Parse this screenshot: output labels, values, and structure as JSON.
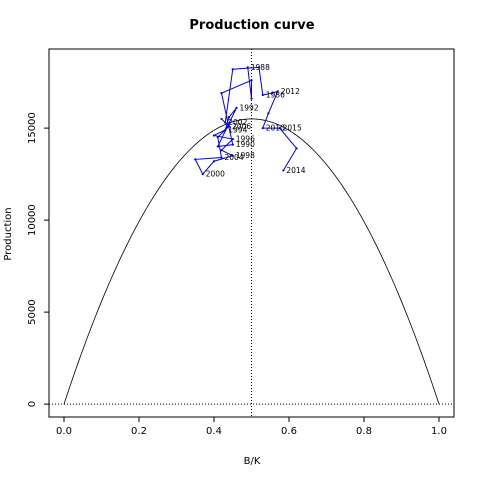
{
  "chart_data": {
    "type": "line",
    "title": "Production curve",
    "xlabel": "B/K",
    "ylabel": "Production",
    "xlim": [
      -0.04,
      1.04
    ],
    "ylim": [
      -700,
      19300
    ],
    "x_ticks": [
      0.0,
      0.2,
      0.4,
      0.6,
      0.8,
      1.0
    ],
    "x_tick_labels": [
      "0.0",
      "0.2",
      "0.4",
      "0.6",
      "0.8",
      "1.0"
    ],
    "y_ticks": [
      0,
      5000,
      10000,
      15000
    ],
    "y_tick_labels": [
      "0",
      "5000",
      "10000",
      "15000"
    ],
    "curve": {
      "description": "parabola P = 4 * MSY * x * (1 - x)",
      "msy": 15500,
      "color": "#000000"
    },
    "reference_lines": {
      "vertical_x": 0.5,
      "horizontal_y": 0,
      "style": "dotted"
    },
    "series": [
      {
        "color": "#0000ee",
        "points": [
          {
            "x": 0.49,
            "y": 18300,
            "label": "1988"
          },
          {
            "x": 0.5,
            "y": 16600,
            "label": ""
          },
          {
            "x": 0.5,
            "y": 17600,
            "label": ""
          },
          {
            "x": 0.42,
            "y": 16900,
            "label": ""
          },
          {
            "x": 0.45,
            "y": 14100,
            "label": "1990"
          },
          {
            "x": 0.41,
            "y": 14000,
            "label": ""
          },
          {
            "x": 0.46,
            "y": 16100,
            "label": "1992"
          },
          {
            "x": 0.44,
            "y": 15600,
            "label": ""
          },
          {
            "x": 0.43,
            "y": 14900,
            "label": "1994"
          },
          {
            "x": 0.4,
            "y": 14600,
            "label": ""
          },
          {
            "x": 0.45,
            "y": 14400,
            "label": "1996"
          },
          {
            "x": 0.42,
            "y": 13800,
            "label": ""
          },
          {
            "x": 0.45,
            "y": 13500,
            "label": "1998"
          },
          {
            "x": 0.4,
            "y": 13200,
            "label": ""
          },
          {
            "x": 0.37,
            "y": 12500,
            "label": "2000"
          },
          {
            "x": 0.35,
            "y": 13300,
            "label": ""
          },
          {
            "x": 0.42,
            "y": 13400,
            "label": "2004"
          },
          {
            "x": 0.41,
            "y": 14500,
            "label": ""
          },
          {
            "x": 0.44,
            "y": 15100,
            "label": "2006"
          },
          {
            "x": 0.42,
            "y": 15500,
            "label": ""
          },
          {
            "x": 0.43,
            "y": 15300,
            "label": "2002"
          },
          {
            "x": 0.45,
            "y": 18200,
            "label": ""
          },
          {
            "x": 0.52,
            "y": 18300,
            "label": ""
          },
          {
            "x": 0.53,
            "y": 16800,
            "label": "1986"
          },
          {
            "x": 0.555,
            "y": 16900,
            "label": ""
          },
          {
            "x": 0.57,
            "y": 17000,
            "label": "2012"
          },
          {
            "x": 0.545,
            "y": 15800,
            "label": ""
          },
          {
            "x": 0.53,
            "y": 15000,
            "label": "2010"
          },
          {
            "x": 0.575,
            "y": 15000,
            "label": "2015"
          },
          {
            "x": 0.62,
            "y": 13900,
            "label": ""
          },
          {
            "x": 0.585,
            "y": 12700,
            "label": "2014"
          }
        ]
      }
    ]
  }
}
